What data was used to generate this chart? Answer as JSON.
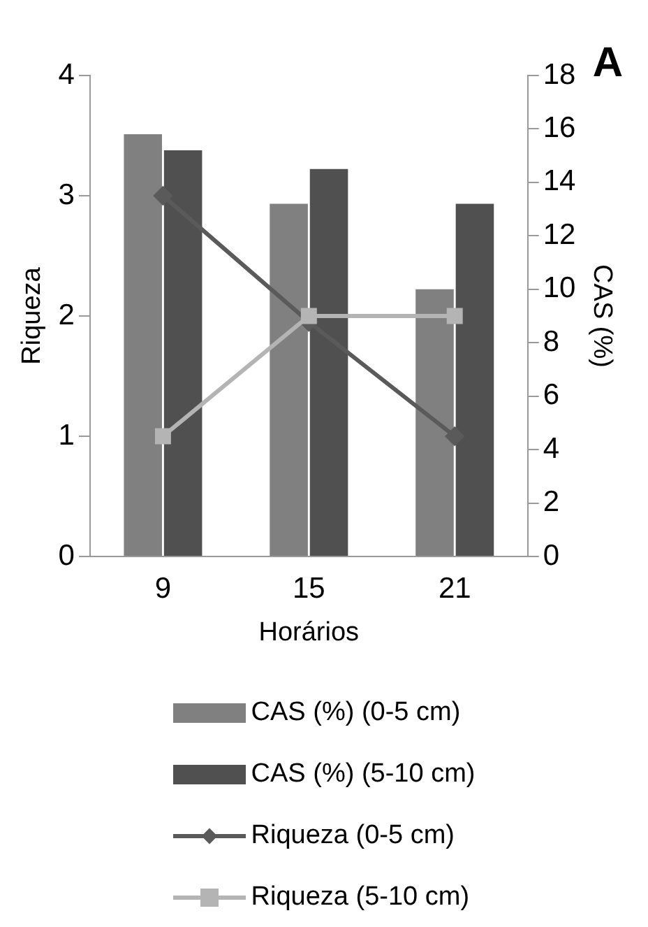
{
  "chart_data": {
    "type": "bar",
    "title": "A",
    "xlabel": "Horários",
    "ylabel": "Riqueza",
    "y2label": "CAS (%)",
    "categories": [
      "9",
      "15",
      "21"
    ],
    "series": [
      {
        "name": "CAS (%) (0-5 cm)",
        "color": "#808080",
        "values": [
          15.8,
          13.2,
          10.0
        ],
        "axis": "y2"
      },
      {
        "name": "CAS (%) (5-10 cm)",
        "color": "#505050",
        "values": [
          15.2,
          14.5,
          13.2
        ],
        "axis": "y2"
      },
      {
        "name": "Riqueza (0-5 cm)",
        "type": "line",
        "color": "#5a5a5a",
        "marker": "diamond",
        "values": [
          3,
          1.95,
          1
        ]
      },
      {
        "name": "Riqueza (5-10 cm)",
        "type": "line",
        "color": "#b4b4b4",
        "marker": "square",
        "values": [
          1,
          2,
          2
        ]
      }
    ],
    "ylim": [
      0,
      4
    ],
    "yticks": [
      0,
      1,
      2,
      3,
      4
    ],
    "y2lim": [
      0,
      18
    ],
    "y2ticks": [
      0,
      2,
      4,
      6,
      8,
      10,
      12,
      14,
      16,
      18
    ],
    "grid": false,
    "legend": "bottom"
  }
}
